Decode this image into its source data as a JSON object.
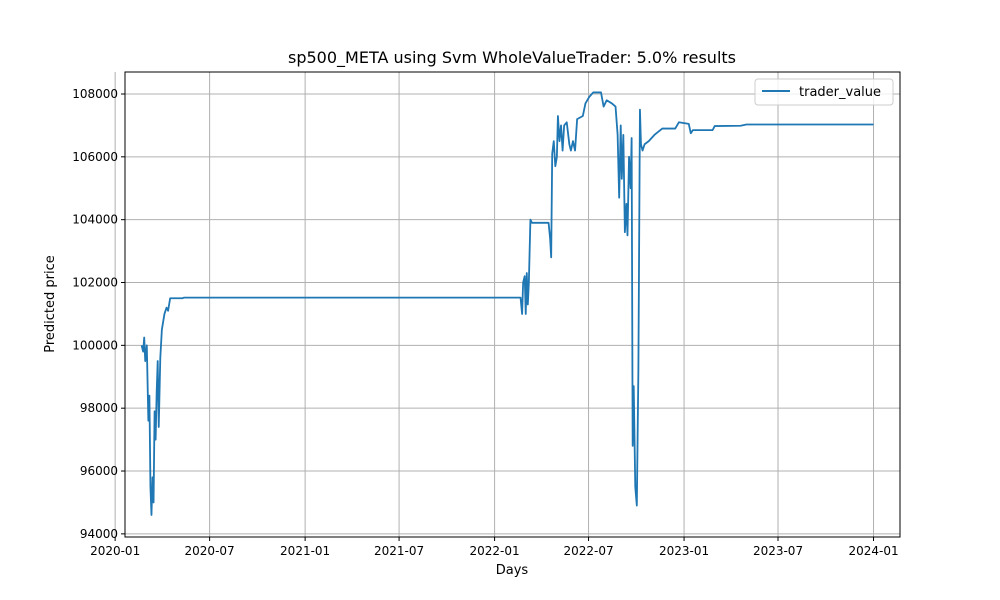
{
  "chart_data": {
    "type": "line",
    "title": "sp500_META using Svm WholeValueTrader: 5.0% results",
    "xlabel": "Days",
    "ylabel": "Predicted price",
    "xlim": [
      "2020-01-20",
      "2024-02-21"
    ],
    "ylim": [
      93900,
      108700
    ],
    "x_ticks": [
      "2020-01",
      "2020-07",
      "2021-01",
      "2021-07",
      "2022-01",
      "2022-07",
      "2023-01",
      "2023-07",
      "2024-01"
    ],
    "x_tick_labels": [
      "2020-01",
      "2020-07",
      "2021-01",
      "2021-07",
      "2022-01",
      "2022-07",
      "2023-01",
      "2023-07",
      "2024-01"
    ],
    "y_ticks": [
      94000,
      96000,
      98000,
      100000,
      102000,
      104000,
      106000,
      108000
    ],
    "y_tick_labels": [
      "94000",
      "96000",
      "98000",
      "100000",
      "102000",
      "104000",
      "106000",
      "108000"
    ],
    "grid": true,
    "legend_position": "top-right",
    "series": [
      {
        "name": "trader_value",
        "color": "#1f77b4",
        "points": [
          [
            "2020-02-21",
            100000
          ],
          [
            "2020-02-24",
            99800
          ],
          [
            "2020-02-26",
            100250
          ],
          [
            "2020-02-28",
            99500
          ],
          [
            "2020-03-02",
            100000
          ],
          [
            "2020-03-05",
            97600
          ],
          [
            "2020-03-07",
            98400
          ],
          [
            "2020-03-09",
            95500
          ],
          [
            "2020-03-11",
            94600
          ],
          [
            "2020-03-13",
            95800
          ],
          [
            "2020-03-15",
            95000
          ],
          [
            "2020-03-17",
            97900
          ],
          [
            "2020-03-19",
            97000
          ],
          [
            "2020-03-21",
            98500
          ],
          [
            "2020-03-23",
            99500
          ],
          [
            "2020-03-25",
            97400
          ],
          [
            "2020-03-28",
            99600
          ],
          [
            "2020-03-31",
            100500
          ],
          [
            "2020-04-05",
            101000
          ],
          [
            "2020-04-09",
            101200
          ],
          [
            "2020-04-12",
            101100
          ],
          [
            "2020-04-16",
            101500
          ],
          [
            "2020-05-10",
            101500
          ],
          [
            "2020-05-13",
            101520
          ],
          [
            "2022-02-20",
            101520
          ],
          [
            "2022-02-23",
            101000
          ],
          [
            "2022-02-25",
            102000
          ],
          [
            "2022-02-28",
            102200
          ],
          [
            "2022-03-02",
            101000
          ],
          [
            "2022-03-04",
            102300
          ],
          [
            "2022-03-06",
            101300
          ],
          [
            "2022-03-08",
            102000
          ],
          [
            "2022-03-11",
            104000
          ],
          [
            "2022-03-14",
            103900
          ],
          [
            "2022-04-15",
            103900
          ],
          [
            "2022-04-18",
            103400
          ],
          [
            "2022-04-20",
            102800
          ],
          [
            "2022-04-22",
            106100
          ],
          [
            "2022-04-25",
            106500
          ],
          [
            "2022-04-28",
            105700
          ],
          [
            "2022-05-01",
            106000
          ],
          [
            "2022-05-03",
            107300
          ],
          [
            "2022-05-06",
            106500
          ],
          [
            "2022-05-09",
            107000
          ],
          [
            "2022-05-12",
            106200
          ],
          [
            "2022-05-15",
            107000
          ],
          [
            "2022-05-20",
            107100
          ],
          [
            "2022-05-25",
            106400
          ],
          [
            "2022-05-28",
            106200
          ],
          [
            "2022-06-01",
            106500
          ],
          [
            "2022-06-05",
            106200
          ],
          [
            "2022-06-09",
            107200
          ],
          [
            "2022-06-20",
            107300
          ],
          [
            "2022-06-25",
            107700
          ],
          [
            "2022-07-02",
            107900
          ],
          [
            "2022-07-10",
            108050
          ],
          [
            "2022-07-25",
            108050
          ],
          [
            "2022-07-30",
            107600
          ],
          [
            "2022-08-05",
            107800
          ],
          [
            "2022-08-15",
            107700
          ],
          [
            "2022-08-22",
            107600
          ],
          [
            "2022-08-26",
            106700
          ],
          [
            "2022-08-29",
            104700
          ],
          [
            "2022-09-01",
            107000
          ],
          [
            "2022-09-03",
            105300
          ],
          [
            "2022-09-06",
            106700
          ],
          [
            "2022-09-09",
            103600
          ],
          [
            "2022-09-12",
            104500
          ],
          [
            "2022-09-14",
            103500
          ],
          [
            "2022-09-17",
            106000
          ],
          [
            "2022-09-20",
            105000
          ],
          [
            "2022-09-22",
            106600
          ],
          [
            "2022-09-24",
            96800
          ],
          [
            "2022-09-26",
            98700
          ],
          [
            "2022-09-29",
            95500
          ],
          [
            "2022-10-02",
            94900
          ],
          [
            "2022-10-05",
            99200
          ],
          [
            "2022-10-08",
            107500
          ],
          [
            "2022-10-10",
            106400
          ],
          [
            "2022-10-13",
            106200
          ],
          [
            "2022-10-17",
            106400
          ],
          [
            "2022-10-25",
            106500
          ],
          [
            "2022-11-05",
            106700
          ],
          [
            "2022-11-20",
            106900
          ],
          [
            "2022-12-15",
            106900
          ],
          [
            "2022-12-22",
            107100
          ],
          [
            "2023-01-10",
            107050
          ],
          [
            "2023-01-14",
            106750
          ],
          [
            "2023-01-18",
            106850
          ],
          [
            "2023-02-25",
            106850
          ],
          [
            "2023-03-01",
            106980
          ],
          [
            "2023-04-20",
            106990
          ],
          [
            "2023-05-01",
            107030
          ],
          [
            "2024-01-01",
            107030
          ]
        ]
      }
    ]
  }
}
